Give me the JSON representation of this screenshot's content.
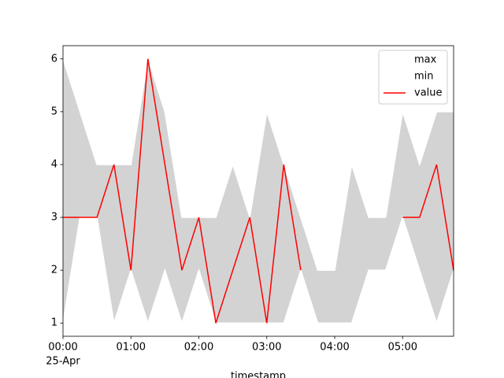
{
  "chart_data": {
    "type": "line",
    "x": [
      "00:00",
      "00:15",
      "00:30",
      "00:45",
      "01:00",
      "01:15",
      "01:30",
      "01:45",
      "02:00",
      "02:15",
      "02:30",
      "02:45",
      "03:00",
      "03:15",
      "03:30",
      "03:45",
      "04:00",
      "04:15",
      "04:30",
      "04:45",
      "05:00",
      "05:15",
      "05:30",
      "05:45"
    ],
    "date": "25-Apr",
    "series": [
      {
        "name": "max",
        "color": "#ffffff",
        "values": [
          6,
          5,
          4,
          4,
          4,
          6,
          5,
          3,
          3,
          3,
          4,
          3,
          5,
          4,
          3,
          2,
          2,
          4,
          3,
          3,
          5,
          4,
          5,
          5
        ]
      },
      {
        "name": "min",
        "color": "#ffffff",
        "values": [
          1,
          3,
          3,
          1,
          2,
          1,
          2,
          1,
          2,
          1,
          1,
          1,
          1,
          1,
          2,
          1,
          1,
          1,
          2,
          2,
          3,
          2,
          1,
          2
        ]
      },
      {
        "name": "value",
        "color": "#ff0000",
        "values": [
          3,
          3,
          3,
          4,
          2,
          6,
          4,
          2,
          3,
          1,
          2,
          3,
          1,
          4,
          2,
          null,
          null,
          null,
          null,
          null,
          3,
          3,
          4,
          2
        ]
      }
    ],
    "fill_color": "#d3d3d3",
    "xlabel": "timestamp",
    "xlim": [
      "00:00",
      "05:45"
    ],
    "xticks": [
      "00:00",
      "01:00",
      "02:00",
      "03:00",
      "04:00",
      "05:00"
    ],
    "ylim": [
      0.75,
      6.25
    ],
    "yticks": [
      1,
      2,
      3,
      4,
      5,
      6
    ],
    "legend": "upper right"
  }
}
